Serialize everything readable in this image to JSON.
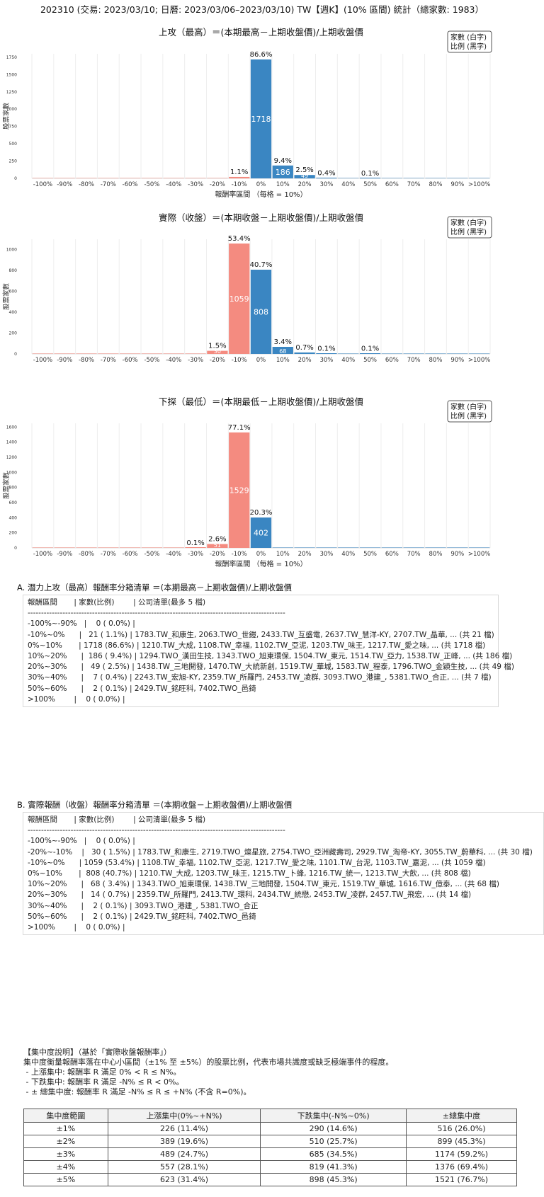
{
  "header": {
    "title": "202310 (交易: 2023/03/10; 日曆: 2023/03/06–2023/03/10) TW【週K】(10% 區間) 統計（總家數: 1983）"
  },
  "legend_note": {
    "line1": "家數 (白字)",
    "line2": "比例 (黑字)"
  },
  "colors": {
    "positive": "#3a86c2",
    "negative": "#f48b80"
  },
  "chart_data": [
    {
      "type": "bar",
      "title": "上攻（最高）＝(本期最高－上期收盤價)/上期收盤價",
      "xlabel": "報酬率區間 （每格 = 10%）",
      "ylabel": "股票家數",
      "categories": [
        "-100%",
        "-90%",
        "-80%",
        "-70%",
        "-60%",
        "-50%",
        "-40%",
        "-30%",
        "-20%",
        "-10%",
        "0%",
        "10%",
        "20%",
        "30%",
        "40%",
        "50%",
        "60%",
        "70%",
        "80%",
        "90%",
        ">100%"
      ],
      "values": [
        0,
        0,
        0,
        0,
        0,
        0,
        0,
        0,
        0,
        21,
        1718,
        186,
        49,
        7,
        0,
        2,
        0,
        0,
        0,
        0,
        0
      ],
      "pct_labels": [
        "",
        "",
        "",
        "",
        "",
        "",
        "",
        "",
        "",
        "1.1%",
        "86.6%",
        "9.4%",
        "2.5%",
        "0.4%",
        "",
        "0.1%",
        "",
        "",
        "",
        "",
        ""
      ],
      "yticks": [
        0,
        250,
        500,
        750,
        1000,
        1250,
        1500,
        1750
      ],
      "ylim": [
        0,
        1800
      ],
      "legend_position": "top-right"
    },
    {
      "type": "bar",
      "title": "實際（收盤）＝(本期收盤－上期收盤價)/上期收盤價",
      "xlabel": "",
      "ylabel": "股票家數",
      "categories": [
        "-100%",
        "-90%",
        "-80%",
        "-70%",
        "-60%",
        "-50%",
        "-40%",
        "-30%",
        "-20%",
        "-10%",
        "0%",
        "10%",
        "20%",
        "30%",
        "40%",
        "50%",
        "60%",
        "70%",
        "80%",
        "90%",
        ">100%"
      ],
      "values": [
        0,
        0,
        0,
        0,
        0,
        0,
        0,
        0,
        30,
        1059,
        808,
        68,
        14,
        2,
        0,
        2,
        0,
        0,
        0,
        0,
        0
      ],
      "pct_labels": [
        "",
        "",
        "",
        "",
        "",
        "",
        "",
        "",
        "1.5%",
        "53.4%",
        "40.7%",
        "3.4%",
        "0.7%",
        "0.1%",
        "",
        "0.1%",
        "",
        "",
        "",
        "",
        ""
      ],
      "yticks": [
        0,
        200,
        400,
        600,
        800,
        1000
      ],
      "ylim": [
        0,
        1100
      ],
      "legend_position": "top-right"
    },
    {
      "type": "bar",
      "title": "下探（最低）＝(本期最低－上期收盤價)/上期收盤價",
      "xlabel": "報酬率區間 （每格 = 10%）",
      "ylabel": "股票家數",
      "categories": [
        "-100%",
        "-90%",
        "-80%",
        "-70%",
        "-60%",
        "-50%",
        "-40%",
        "-30%",
        "-20%",
        "-10%",
        "0%",
        "10%",
        "20%",
        "30%",
        "40%",
        "50%",
        "60%",
        "70%",
        "80%",
        "90%",
        ">100%"
      ],
      "values": [
        0,
        0,
        0,
        0,
        0,
        0,
        0,
        1,
        51,
        1529,
        402,
        0,
        0,
        0,
        0,
        0,
        0,
        0,
        0,
        0,
        0
      ],
      "pct_labels": [
        "",
        "",
        "",
        "",
        "",
        "",
        "",
        "0.1%",
        "2.6%",
        "77.1%",
        "20.3%",
        "",
        "",
        "",
        "",
        "",
        "",
        "",
        "",
        "",
        ""
      ],
      "yticks": [
        0,
        200,
        400,
        600,
        800,
        1000,
        1200,
        1400,
        1600
      ],
      "ylim": [
        0,
        1650
      ],
      "legend_position": "top-right"
    }
  ],
  "section_a": {
    "title": "A. 潛力上攻（最高）報酬率分箱清單 ＝(本期最高－上期收盤價)/上期收盤價",
    "rows": [
      "報酬區間       | 家數(比例)        | 公司清單(最多 5 檔)",
      "------------------------------------------------------------------------------------------------",
      "-100%~-90%   |    0 ( 0.0%) |",
      "-10%~0%      |   21 ( 1.1%) | 1783.TW_和康生, 2063.TWO_世鎧, 2433.TW_互盛電, 2637.TW_慧洋-KY, 2707.TW_晶華, ... (共 21 檔)",
      "0%~10%       | 1718 (86.6%) | 1210.TW_大成, 1108.TW_幸福, 1102.TW_亞泥, 1203.TW_味王, 1217.TW_愛之味, ... (共 1718 檔)",
      "10%~20%      |  186 ( 9.4%) | 1294.TWO_漢田生技, 1343.TWO_旭東環保, 1504.TW_東元, 1514.TW_亞力, 1538.TW_正峰, ... (共 186 檔)",
      "20%~30%      |   49 ( 2.5%) | 1438.TW_三地開發, 1470.TW_大統新創, 1519.TW_華城, 1583.TW_程泰, 1796.TWO_金穎生技, ... (共 49 檔)",
      "30%~40%      |    7 ( 0.4%) | 2243.TW_宏旭-KY, 2359.TW_所羅門, 2453.TW_凌群, 3093.TWO_港建_, 5381.TWO_合正, ... (共 7 檔)",
      "50%~60%      |    2 ( 0.1%) | 2429.TW_銘旺科, 7402.TWO_邑錡",
      ">100%        |    0 ( 0.0%) |"
    ]
  },
  "section_b": {
    "title": "B. 實際報酬（收盤）報酬率分箱清單 ＝(本期收盤－上期收盤價)/上期收盤價",
    "rows": [
      "報酬區間       | 家數(比例)        | 公司清單(最多 5 檔)",
      "------------------------------------------------------------------------------------------------",
      "-100%~-90%   |    0 ( 0.0%) |",
      "-20%~-10%    |   30 ( 1.5%) | 1783.TW_和康生, 2719.TWO_燦星旅, 2754.TWO_亞洲藏壽司, 2929.TW_淘帝-KY, 3055.TW_蔚華科, ... (共 30 檔)",
      "-10%~0%      | 1059 (53.4%) | 1108.TW_幸福, 1102.TW_亞泥, 1217.TW_愛之味, 1101.TW_台泥, 1103.TW_嘉泥, ... (共 1059 檔)",
      "0%~10%       |  808 (40.7%) | 1210.TW_大成, 1203.TW_味王, 1215.TW_卜蜂, 1216.TW_統一, 1213.TW_大飲, ... (共 808 檔)",
      "10%~20%      |   68 ( 3.4%) | 1343.TWO_旭東環保, 1438.TW_三地開發, 1504.TW_東元, 1519.TW_華城, 1616.TW_億泰, ... (共 68 檔)",
      "20%~30%      |   14 ( 0.7%) | 2359.TW_所羅門, 2413.TW_環科, 2434.TW_統懋, 2453.TW_凌群, 2457.TW_飛宏, ... (共 14 檔)",
      "30%~40%      |    2 ( 0.1%) | 3093.TWO_港建_, 5381.TWO_合正",
      "50%~60%      |    2 ( 0.1%) | 2429.TW_銘旺科, 7402.TWO_邑錡",
      ">100%        |    0 ( 0.0%) |"
    ]
  },
  "concentration": {
    "lines": [
      "【集中度說明】（基於「實際收盤報酬率」）",
      "集中度衡量報酬率落在中心小區間（±1% 至 ±5%）的股票比例，代表市場共識度或缺乏極端事件的程度。",
      " - 上漲集中: 報酬率 R 滿足 0% < R ≤ N%。",
      " - 下跌集中: 報酬率 R 滿足 -N% ≤ R < 0%。",
      " - ± 總集中度: 報酬率 R 滿足 -N% ≤ R ≤ +N% (不含 R=0%)。"
    ],
    "headers": [
      "集中度範圍",
      "上漲集中(0%~+N%)",
      "下跌集中(-N%~0%)",
      "±總集中度"
    ],
    "rows": [
      [
        "±1%",
        "226 (11.4%)",
        "290 (14.6%)",
        "516 (26.0%)"
      ],
      [
        "±2%",
        "389 (19.6%)",
        "510 (25.7%)",
        "899 (45.3%)"
      ],
      [
        "±3%",
        "489 (24.7%)",
        "685 (34.5%)",
        "1174 (59.2%)"
      ],
      [
        "±4%",
        "557 (28.1%)",
        "819 (41.3%)",
        "1376 (69.4%)"
      ],
      [
        "±5%",
        "623 (31.4%)",
        "898 (45.3%)",
        "1521 (76.7%)"
      ]
    ]
  }
}
